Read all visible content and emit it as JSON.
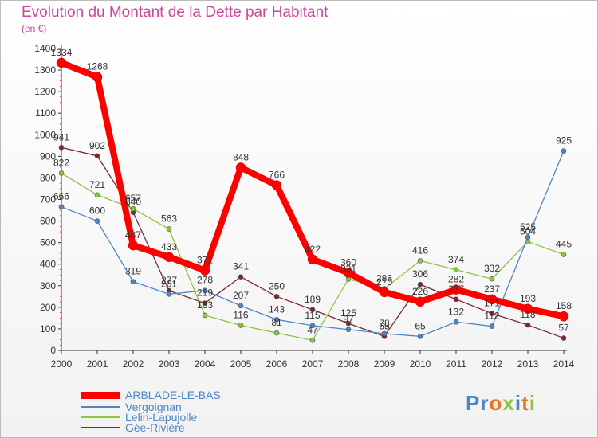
{
  "title": "Evolution du Montant de la Dette par Habitant",
  "unit": "(en €)",
  "logo": {
    "text": "Proxiti",
    "letter_colors": [
      "#4e86c4",
      "#4e86c4",
      "#e8731a",
      "#8cc63f",
      "#4e86c4",
      "#e8731a",
      "#8cc63f"
    ]
  },
  "chart_data": {
    "type": "line",
    "x": [
      2000,
      2001,
      2002,
      2003,
      2004,
      2005,
      2006,
      2007,
      2008,
      2009,
      2010,
      2011,
      2012,
      2013,
      2014
    ],
    "xlabel": "",
    "ylabel": "",
    "ylim": [
      0,
      1400
    ],
    "yticks": [
      0,
      100,
      200,
      300,
      400,
      500,
      600,
      700,
      800,
      900,
      1000,
      1100,
      1200,
      1300,
      1400
    ],
    "grid": false,
    "legend_placement": "bottom-left",
    "series": [
      {
        "name": "ARBLADE-LE-BAS",
        "color": "#ff0000",
        "values": [
          1334,
          1268,
          487,
          433,
          371,
          848,
          766,
          422,
          360,
          270,
          226,
          282,
          237,
          193,
          158
        ]
      },
      {
        "name": "Vergoignan",
        "color": "#4e86c4",
        "values": [
          666,
          600,
          319,
          261,
          278,
          207,
          143,
          115,
          97,
          78,
          65,
          132,
          112,
          525,
          925
        ]
      },
      {
        "name": "Lelin-Lapujolle",
        "color": "#8cc63f",
        "values": [
          822,
          721,
          657,
          563,
          163,
          116,
          81,
          47,
          331,
          286,
          416,
          374,
          332,
          504,
          445
        ]
      },
      {
        "name": "Gée-Rivière",
        "color": "#7a2a2a",
        "values": [
          941,
          902,
          640,
          277,
          219,
          341,
          250,
          189,
          125,
          65,
          306,
          237,
          171,
          118,
          57
        ]
      }
    ]
  }
}
